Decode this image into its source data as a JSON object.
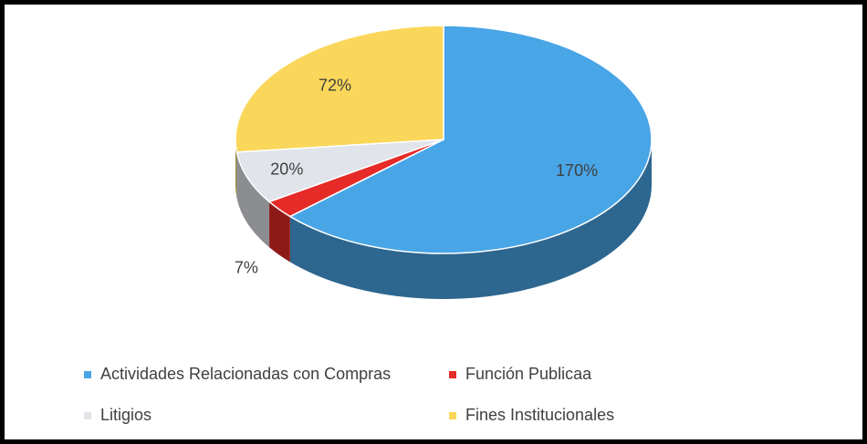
{
  "chart_data": {
    "type": "pie3d",
    "categories": [
      "Actividades Relacionadas con Compras",
      "Función Publicaa",
      "Litigios",
      "Fines Institucionales"
    ],
    "values": [
      170,
      7,
      20,
      72
    ],
    "value_labels": [
      "170%",
      "7%",
      "20%",
      "72%"
    ],
    "colors": [
      "#48a5e6",
      "#e52a27",
      "#e1e4ea",
      "#fad75a"
    ],
    "legend": "bottom"
  }
}
